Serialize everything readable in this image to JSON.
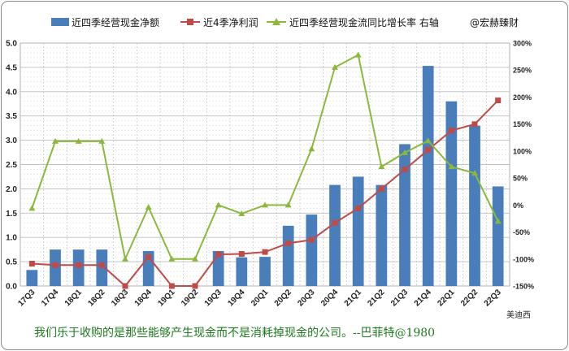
{
  "chart_data": {
    "type": "bar+line",
    "categories": [
      "17Q3",
      "17Q4",
      "18Q1",
      "18Q2",
      "18Q3",
      "18Q4",
      "19Q1",
      "19Q2",
      "19Q3",
      "19Q4",
      "20Q1",
      "20Q2",
      "20Q3",
      "20Q4",
      "21Q1",
      "21Q2",
      "21Q3",
      "21Q4",
      "22Q1",
      "22Q2",
      "22Q3"
    ],
    "ylim": [
      0,
      5
    ],
    "yticks": [
      "0.0",
      "0.5",
      "1.0",
      "1.5",
      "2.0",
      "2.5",
      "3.0",
      "3.5",
      "4.0",
      "4.5",
      "5.0"
    ],
    "y2lim": [
      -150,
      300
    ],
    "y2ticks": [
      "-150%",
      "-100%",
      "-50%",
      "0%",
      "50%",
      "100%",
      "150%",
      "200%",
      "250%",
      "300%"
    ],
    "grid": true,
    "series": [
      {
        "name": "近四季经营现金净额",
        "type": "bar",
        "axis": "left",
        "color": "#4a7ebb",
        "values": [
          0.33,
          0.75,
          0.75,
          0.75,
          0.0,
          0.72,
          0.0,
          0.0,
          0.72,
          0.59,
          0.6,
          1.24,
          1.47,
          2.08,
          2.25,
          2.08,
          2.92,
          4.53,
          3.8,
          3.3,
          2.05
        ]
      },
      {
        "name": "近4季净利润",
        "type": "line",
        "axis": "left",
        "color": "#be4b48",
        "values": [
          0.46,
          0.43,
          0.43,
          0.43,
          0.0,
          0.6,
          0.0,
          0.0,
          0.65,
          0.66,
          0.7,
          0.88,
          0.95,
          1.3,
          1.6,
          2.0,
          2.4,
          2.8,
          3.2,
          3.33,
          3.82
        ]
      },
      {
        "name": "近四季经营现金流同比增长率 右轴",
        "type": "line",
        "axis": "right",
        "color": "#8cb83d",
        "values": [
          -6,
          118,
          118,
          118,
          -100,
          -4,
          -100,
          -100,
          0,
          -16,
          0,
          0,
          104,
          255,
          278,
          71,
          97,
          119,
          71,
          59,
          -30
        ]
      }
    ],
    "legend_position": "top",
    "watermark": "@宏赫臻财",
    "annotation": "美迪西",
    "quote": "我们乐于收购的是那些能够产生现金而不是消耗掉现金的公司。--巴菲特@1980"
  }
}
